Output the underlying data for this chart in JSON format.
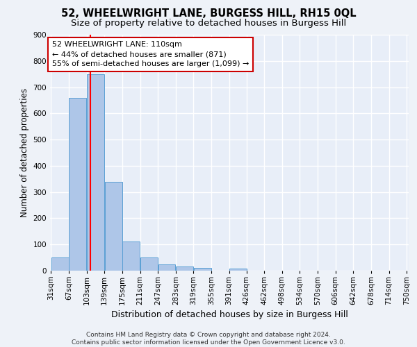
{
  "title": "52, WHEELWRIGHT LANE, BURGESS HILL, RH15 0QL",
  "subtitle": "Size of property relative to detached houses in Burgess Hill",
  "xlabel": "Distribution of detached houses by size in Burgess Hill",
  "ylabel": "Number of detached properties",
  "footer_line1": "Contains HM Land Registry data © Crown copyright and database right 2024.",
  "footer_line2": "Contains public sector information licensed under the Open Government Licence v3.0.",
  "bin_edges": [
    31,
    67,
    103,
    139,
    175,
    211,
    247,
    283,
    319,
    355,
    391,
    426,
    462,
    498,
    534,
    570,
    606,
    642,
    678,
    714,
    750
  ],
  "bar_heights": [
    50,
    660,
    750,
    340,
    110,
    50,
    25,
    15,
    10,
    0,
    8,
    0,
    0,
    0,
    0,
    0,
    0,
    0,
    0,
    0
  ],
  "bar_color": "#aec6e8",
  "bar_edgecolor": "#5a9fd4",
  "red_line_x": 110,
  "annotation_text_line1": "52 WHEELWRIGHT LANE: 110sqm",
  "annotation_text_line2": "← 44% of detached houses are smaller (871)",
  "annotation_text_line3": "55% of semi-detached houses are larger (1,099) →",
  "annotation_box_color": "#ffffff",
  "annotation_box_edgecolor": "#cc0000",
  "ylim": [
    0,
    900
  ],
  "yticks": [
    0,
    100,
    200,
    300,
    400,
    500,
    600,
    700,
    800,
    900
  ],
  "bg_color": "#eef2f8",
  "plot_bg_color": "#e8eef8",
  "grid_color": "#ffffff",
  "title_fontsize": 10.5,
  "subtitle_fontsize": 9.5,
  "tick_label_fontsize": 7.5,
  "ylabel_fontsize": 8.5,
  "xlabel_fontsize": 9,
  "footer_fontsize": 6.5,
  "annotation_fontsize": 8
}
